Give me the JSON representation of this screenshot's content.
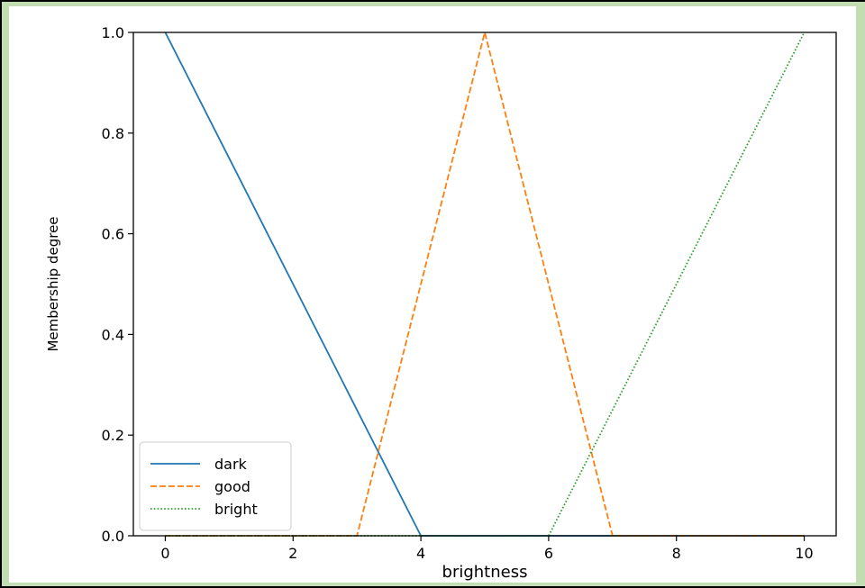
{
  "colors": {
    "border_green": "#c3ddb3"
  },
  "chart_data": {
    "type": "line",
    "xlabel": "brightness",
    "ylabel": "Membership degree",
    "xlim": [
      -0.5,
      10.5
    ],
    "ylim": [
      0.0,
      1.0
    ],
    "xticks": [
      "0",
      "2",
      "4",
      "6",
      "8",
      "10"
    ],
    "yticks": [
      "0.0",
      "0.2",
      "0.4",
      "0.6",
      "0.8",
      "1.0"
    ],
    "grid": false,
    "legend_position": "lower-left",
    "series": [
      {
        "name": "dark",
        "color": "#1f77b4",
        "style": "solid",
        "x": [
          0,
          4,
          10
        ],
        "y": [
          1.0,
          0.0,
          0.0
        ]
      },
      {
        "name": "good",
        "color": "#ff7f0e",
        "style": "dashed",
        "x": [
          0,
          3,
          5,
          7,
          10
        ],
        "y": [
          0.0,
          0.0,
          1.0,
          0.0,
          0.0
        ]
      },
      {
        "name": "bright",
        "color": "#2ca02c",
        "style": "dotted",
        "x": [
          0,
          6,
          10
        ],
        "y": [
          0.0,
          0.0,
          1.0
        ]
      }
    ]
  }
}
